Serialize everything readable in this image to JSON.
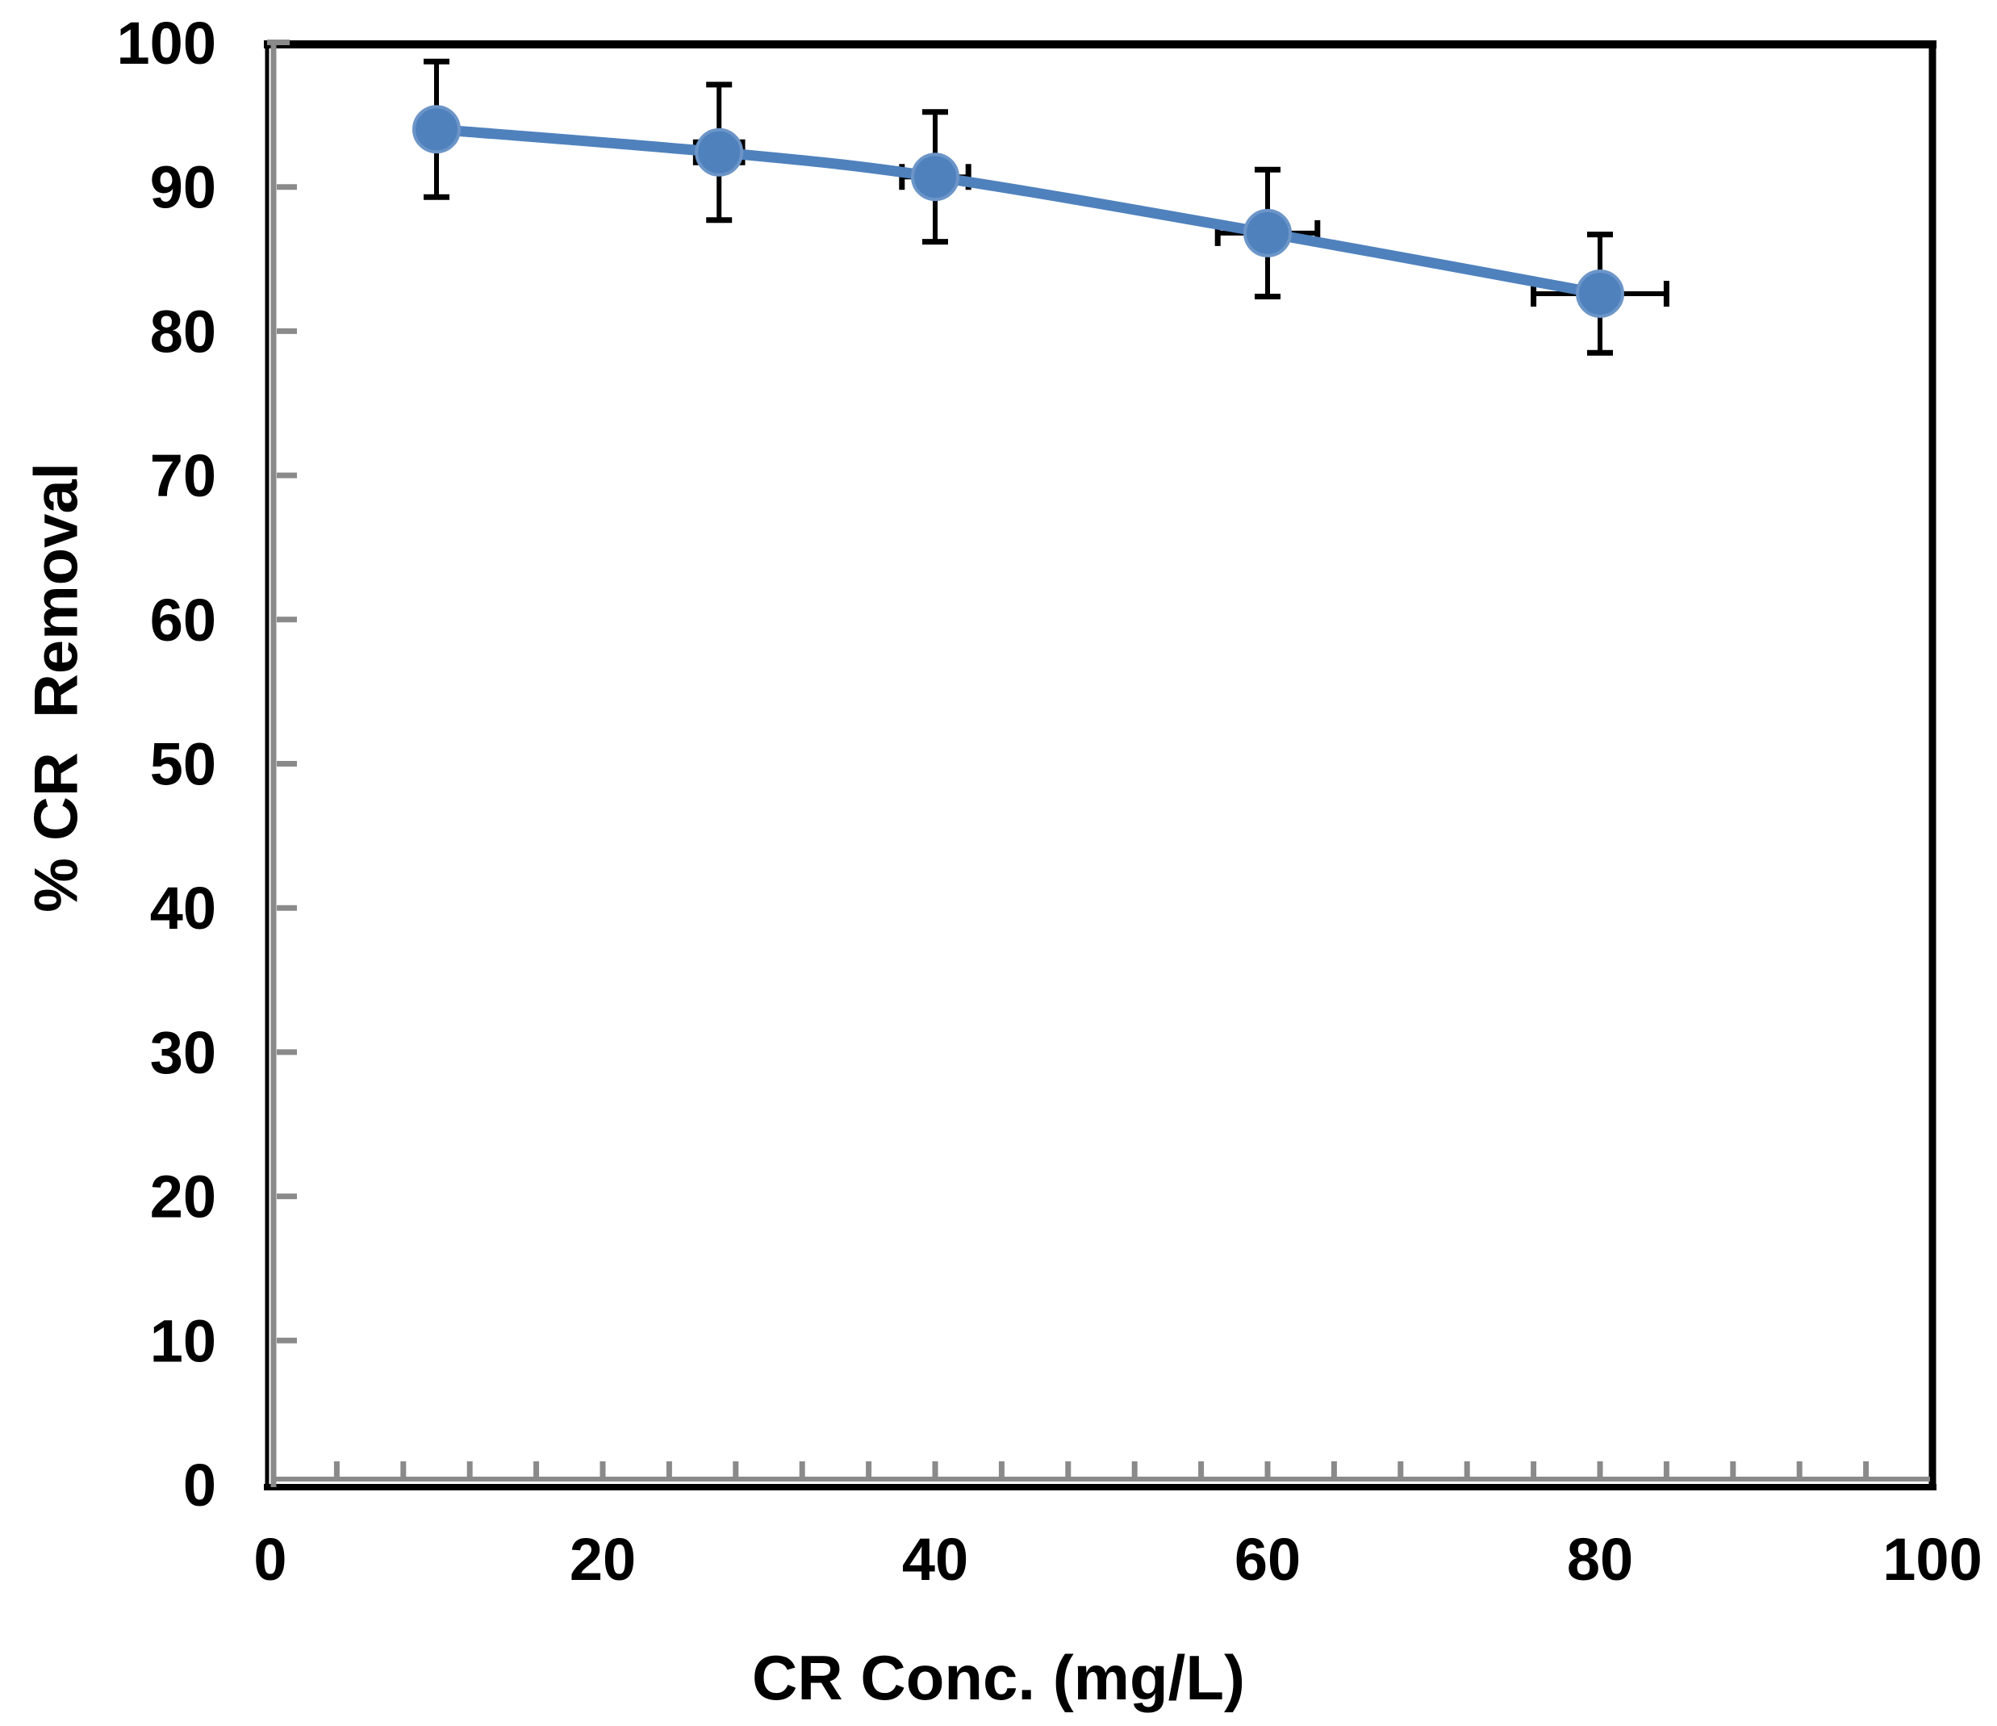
{
  "figure": {
    "background": "#FFFFFF"
  },
  "chart_data": {
    "type": "line",
    "title": "",
    "xlabel": "CR Conc. (mg/L)",
    "ylabel": "% CR  Removal",
    "x": [
      10,
      27,
      40,
      60,
      80
    ],
    "series": [
      {
        "name": "% CR Removal",
        "values": [
          94.0,
          92.4,
          90.7,
          86.8,
          82.6
        ],
        "y_error": [
          4.7,
          4.7,
          4.5,
          4.4,
          4.1
        ],
        "x_error": [
          0.5,
          1.4,
          2.0,
          3.0,
          4.0
        ]
      }
    ],
    "xlim": [
      0,
      100
    ],
    "ylim": [
      0,
      100
    ],
    "x_tick_labels": [
      "0",
      "20",
      "40",
      "60",
      "80",
      "100"
    ],
    "x_tick_values": [
      0,
      20,
      40,
      60,
      80,
      100
    ],
    "x_minor_tick_step": 4,
    "y_tick_labels": [
      "0",
      "10",
      "20",
      "30",
      "40",
      "50",
      "60",
      "70",
      "80",
      "90",
      "100"
    ],
    "y_tick_values": [
      0,
      10,
      20,
      30,
      40,
      50,
      60,
      70,
      80,
      90,
      100
    ],
    "grid": false,
    "legend": false,
    "smooth_line": true,
    "marker": "circle",
    "error_bars": "xy",
    "colors": {
      "series_line": "#4F81BD",
      "marker_fill": "#4F81BD",
      "marker_edge": "#6C95C8",
      "error_bar": "#000000",
      "axis_gray": "#8A8A8A",
      "plot_border": "#000000",
      "text": "#000000",
      "background": "#FFFFFF"
    }
  }
}
